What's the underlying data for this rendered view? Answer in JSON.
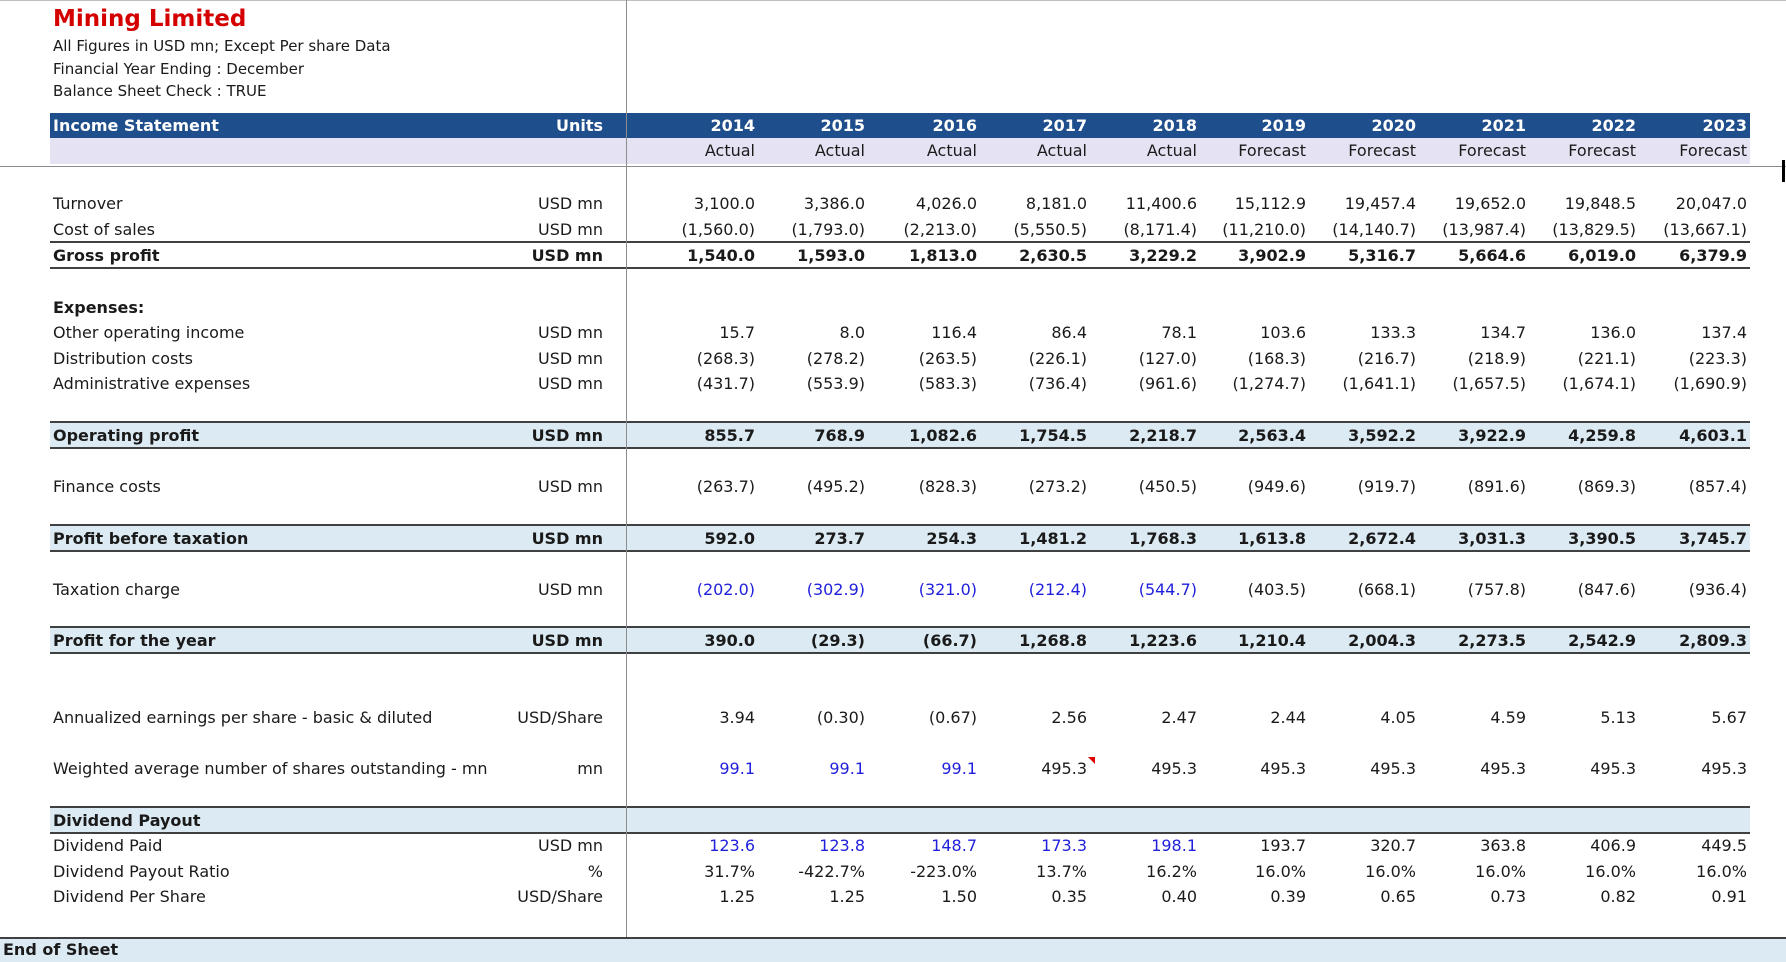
{
  "header": {
    "company": "Mining Limited",
    "note_figures": "All Figures in USD mn; Except Per share Data",
    "note_fy": "Financial Year Ending : December",
    "note_check": "Balance Sheet Check : TRUE"
  },
  "table": {
    "section_title": "Income Statement",
    "units_header": "Units",
    "years": [
      "2014",
      "2015",
      "2016",
      "2017",
      "2018",
      "2019",
      "2020",
      "2021",
      "2022",
      "2023"
    ],
    "status": [
      "Actual",
      "Actual",
      "Actual",
      "Actual",
      "Actual",
      "Forecast",
      "Forecast",
      "Forecast",
      "Forecast",
      "Forecast"
    ]
  },
  "rows": {
    "turnover": {
      "label": "Turnover",
      "unit": "USD mn",
      "values": [
        "3,100.0",
        "3,386.0",
        "4,026.0",
        "8,181.0",
        "11,400.6",
        "15,112.9",
        "19,457.4",
        "19,652.0",
        "19,848.5",
        "20,047.0"
      ]
    },
    "cost_of_sales": {
      "label": "Cost of sales",
      "unit": "USD mn",
      "values": [
        "(1,560.0)",
        "(1,793.0)",
        "(2,213.0)",
        "(5,550.5)",
        "(8,171.4)",
        "(11,210.0)",
        "(14,140.7)",
        "(13,987.4)",
        "(13,829.5)",
        "(13,667.1)"
      ]
    },
    "gross_profit": {
      "label": "Gross profit",
      "unit": "USD mn",
      "values": [
        "1,540.0",
        "1,593.0",
        "1,813.0",
        "2,630.5",
        "3,229.2",
        "3,902.9",
        "5,316.7",
        "5,664.6",
        "6,019.0",
        "6,379.9"
      ]
    },
    "expenses": {
      "label": "Expenses:"
    },
    "other_operating_income": {
      "label": "Other operating income",
      "unit": "USD mn",
      "values": [
        "15.7",
        "8.0",
        "116.4",
        "86.4",
        "78.1",
        "103.6",
        "133.3",
        "134.7",
        "136.0",
        "137.4"
      ]
    },
    "distribution_costs": {
      "label": "Distribution costs",
      "unit": "USD mn",
      "values": [
        "(268.3)",
        "(278.2)",
        "(263.5)",
        "(226.1)",
        "(127.0)",
        "(168.3)",
        "(216.7)",
        "(218.9)",
        "(221.1)",
        "(223.3)"
      ]
    },
    "administrative_expenses": {
      "label": "Administrative expenses",
      "unit": "USD mn",
      "values": [
        "(431.7)",
        "(553.9)",
        "(583.3)",
        "(736.4)",
        "(961.6)",
        "(1,274.7)",
        "(1,641.1)",
        "(1,657.5)",
        "(1,674.1)",
        "(1,690.9)"
      ]
    },
    "operating_profit": {
      "label": "Operating profit",
      "unit": "USD mn",
      "values": [
        "855.7",
        "768.9",
        "1,082.6",
        "1,754.5",
        "2,218.7",
        "2,563.4",
        "3,592.2",
        "3,922.9",
        "4,259.8",
        "4,603.1"
      ]
    },
    "finance_costs": {
      "label": "Finance costs",
      "unit": "USD mn",
      "values": [
        "(263.7)",
        "(495.2)",
        "(828.3)",
        "(273.2)",
        "(450.5)",
        "(949.6)",
        "(919.7)",
        "(891.6)",
        "(869.3)",
        "(857.4)"
      ]
    },
    "profit_before_tax": {
      "label": "Profit before taxation",
      "unit": "USD mn",
      "values": [
        "592.0",
        "273.7",
        "254.3",
        "1,481.2",
        "1,768.3",
        "1,613.8",
        "2,672.4",
        "3,031.3",
        "3,390.5",
        "3,745.7"
      ]
    },
    "taxation_charge": {
      "label": "Taxation charge",
      "unit": "USD mn",
      "values": [
        "(202.0)",
        "(302.9)",
        "(321.0)",
        "(212.4)",
        "(544.7)",
        "(403.5)",
        "(668.1)",
        "(757.8)",
        "(847.6)",
        "(936.4)"
      ]
    },
    "profit_for_year": {
      "label": "Profit for the year",
      "unit": "USD mn",
      "values": [
        "390.0",
        "(29.3)",
        "(66.7)",
        "1,268.8",
        "1,223.6",
        "1,210.4",
        "2,004.3",
        "2,273.5",
        "2,542.9",
        "2,809.3"
      ]
    },
    "eps": {
      "label": "Annualized earnings per share - basic & diluted",
      "unit": "USD/Share",
      "values": [
        "3.94",
        "(0.30)",
        "(0.67)",
        "2.56",
        "2.47",
        "2.44",
        "4.05",
        "4.59",
        "5.13",
        "5.67"
      ]
    },
    "shares": {
      "label": "Weighted average number of shares outstanding - mn",
      "unit": "mn",
      "values": [
        "99.1",
        "99.1",
        "99.1",
        "495.3",
        "495.3",
        "495.3",
        "495.3",
        "495.3",
        "495.3",
        "495.3"
      ]
    },
    "dividend_payout": {
      "label": "Dividend Payout"
    },
    "dividend_paid": {
      "label": "Dividend Paid",
      "unit": "USD mn",
      "values": [
        "123.6",
        "123.8",
        "148.7",
        "173.3",
        "198.1",
        "193.7",
        "320.7",
        "363.8",
        "406.9",
        "449.5"
      ]
    },
    "dividend_payout_ratio": {
      "label": "Dividend Payout Ratio",
      "unit": "%",
      "values": [
        "31.7%",
        "-422.7%",
        "-223.0%",
        "13.7%",
        "16.2%",
        "16.0%",
        "16.0%",
        "16.0%",
        "16.0%",
        "16.0%"
      ]
    },
    "dividend_per_share": {
      "label": "Dividend Per Share",
      "unit": "USD/Share",
      "values": [
        "1.25",
        "1.25",
        "1.50",
        "0.35",
        "0.40",
        "0.39",
        "0.65",
        "0.73",
        "0.82",
        "0.91"
      ]
    }
  },
  "footer": {
    "end_label": "End of Sheet"
  },
  "colors": {
    "title_red": "#d40000",
    "header_blue": "#1f4e8c",
    "band_light_blue": "#dcebf3",
    "input_blue": "#1f1fdc",
    "subheader_lavender": "#e5e3f3"
  }
}
